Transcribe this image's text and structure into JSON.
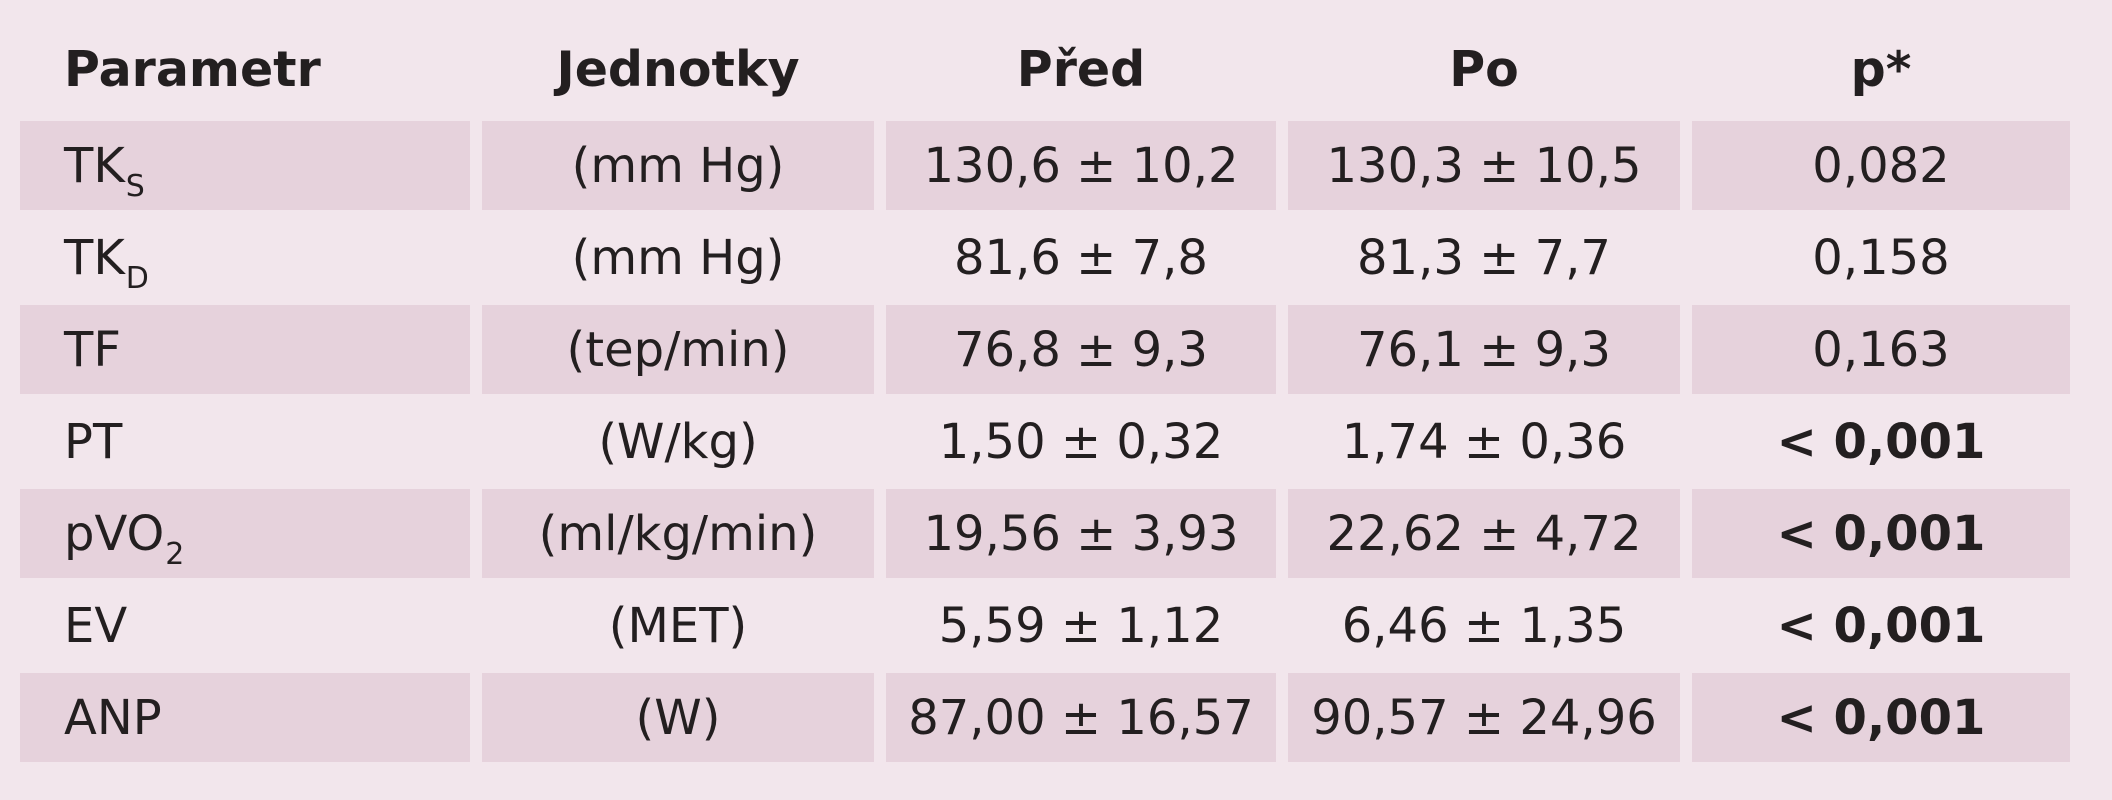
{
  "table": {
    "headers": [
      "Parametr",
      "Jednotky",
      "Před",
      "Po",
      "p*"
    ],
    "rows": [
      {
        "param": "TK",
        "param_sub": "S",
        "unit": "(mm Hg)",
        "before": "130,6 ± 10,2",
        "after": "130,3 ± 10,5",
        "p": "0,082",
        "p_bold": false
      },
      {
        "param": "TK",
        "param_sub": "D",
        "unit": "(mm Hg)",
        "before": "81,6 ± 7,8",
        "after": "81,3 ± 7,7",
        "p": "0,158",
        "p_bold": false
      },
      {
        "param": "TF",
        "param_sub": "",
        "unit": "(tep/min)",
        "before": "76,8 ± 9,3",
        "after": "76,1 ± 9,3",
        "p": "0,163",
        "p_bold": false
      },
      {
        "param": "PT",
        "param_sub": "",
        "unit": "(W/kg)",
        "before": "1,50 ± 0,32",
        "after": "1,74 ± 0,36",
        "p": "< 0,001",
        "p_bold": true
      },
      {
        "param": "pVO",
        "param_sub": "2",
        "unit": "(ml/kg/min)",
        "before": "19,56 ± 3,93",
        "after": "22,62 ± 4,72",
        "p": "< 0,001",
        "p_bold": true
      },
      {
        "param": "EV",
        "param_sub": "",
        "unit": "(MET)",
        "before": "5,59 ± 1,12",
        "after": "6,46 ± 1,35",
        "p": "< 0,001",
        "p_bold": true
      },
      {
        "param": "ANP",
        "param_sub": "",
        "unit": "(W)",
        "before": "87,00 ± 16,57",
        "after": "90,57 ± 24,96",
        "p": "< 0,001",
        "p_bold": true
      }
    ]
  },
  "colors": {
    "page_background": "#f2e6ec",
    "row_shading": "#e6d2dc",
    "text": "#231f20"
  }
}
